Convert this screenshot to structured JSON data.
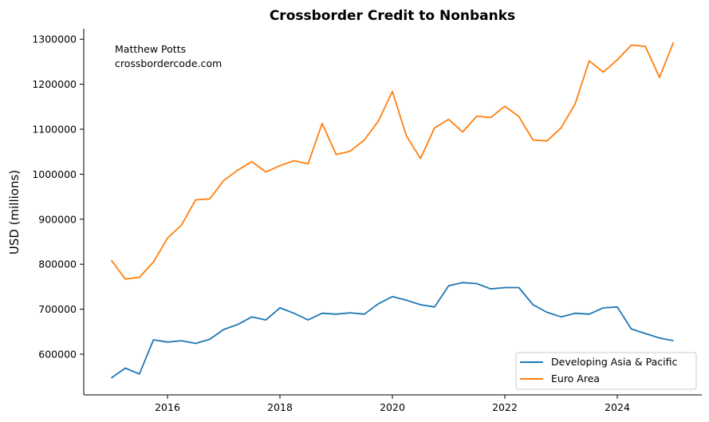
{
  "chart_data": {
    "type": "line",
    "title": "Crossborder Credit to Nonbanks",
    "xlabel": "",
    "ylabel": "USD (millions)",
    "annotation": [
      "Matthew Potts",
      "crossbordercode.com"
    ],
    "x_start": 2015.0,
    "x_step": 0.25,
    "xlim": [
      2014.5,
      2025.4
    ],
    "ylim": [
      520000,
      1325000
    ],
    "x_ticks": [
      2016,
      2018,
      2020,
      2022,
      2024
    ],
    "x_tick_labels": [
      "2016",
      "2018",
      "2020",
      "2022",
      "2024"
    ],
    "y_ticks": [
      600000,
      700000,
      800000,
      900000,
      1000000,
      1100000,
      1200000,
      1300000
    ],
    "y_tick_labels": [
      "600000",
      "700000",
      "800000",
      "900000",
      "1000000",
      "1100000",
      "1200000",
      "1300000"
    ],
    "grid": false,
    "legend_position": "lower right",
    "series": [
      {
        "name": "Developing Asia & Pacific",
        "color": "#1f77b4",
        "values": [
          547000,
          569000,
          556000,
          632000,
          627000,
          630000,
          624000,
          633000,
          655000,
          666000,
          683000,
          676000,
          703000,
          691000,
          676000,
          691000,
          689000,
          692000,
          689000,
          712000,
          728000,
          720000,
          710000,
          705000,
          752000,
          759000,
          757000,
          745000,
          748000,
          748000,
          710000,
          693000,
          683000,
          691000,
          689000,
          703000,
          705000,
          656000,
          646000,
          636000,
          630000
        ]
      },
      {
        "name": "Euro Area",
        "color": "#ff7f0e",
        "values": [
          809000,
          767000,
          771000,
          805000,
          858000,
          887000,
          943000,
          945000,
          986000,
          1009000,
          1028000,
          1005000,
          1019000,
          1030000,
          1023000,
          1113000,
          1044000,
          1051000,
          1076000,
          1118000,
          1184000,
          1085000,
          1035000,
          1103000,
          1122000,
          1094000,
          1129000,
          1126000,
          1151000,
          1128000,
          1076000,
          1074000,
          1103000,
          1156000,
          1252000,
          1227000,
          1254000,
          1287000,
          1284000,
          1215000,
          1293000
        ]
      }
    ]
  }
}
